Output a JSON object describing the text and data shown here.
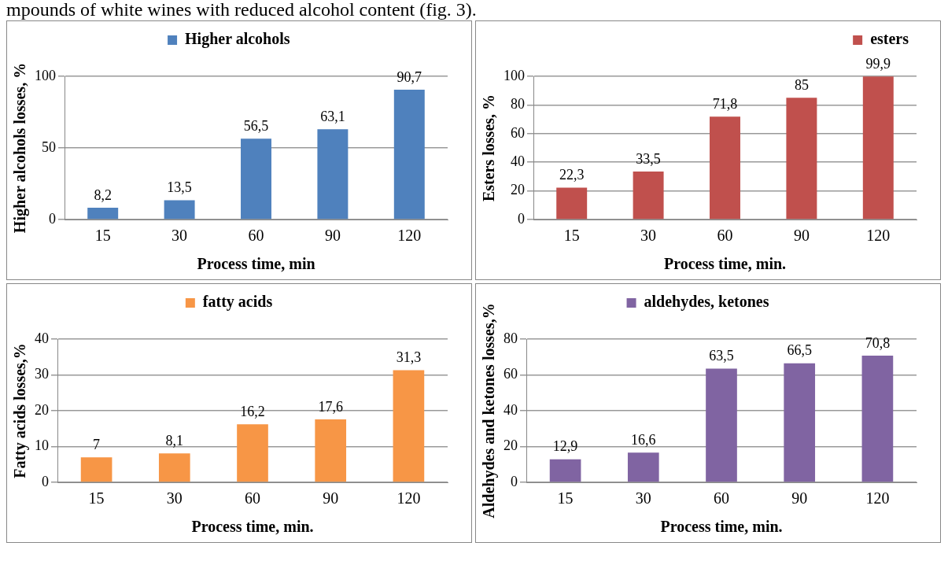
{
  "chart_data": [
    {
      "type": "bar",
      "annotations": [
        "mpounds of white wines with reduced alcohol content (fig. 3)."
      ],
      "categories": [
        "15",
        "30",
        "60",
        "90",
        "120"
      ],
      "xlabel": "Process time, min",
      "ylabel": "Higher alcohols losses, %",
      "ylim": [
        0,
        100
      ],
      "yticks": [
        0,
        50,
        100
      ],
      "grid": "y",
      "legend": "top",
      "series": [
        {
          "name": "Higher alcohols",
          "color": "#4f81bd",
          "values": [
            8.2,
            13.5,
            56.5,
            63.1,
            90.7
          ],
          "value_labels": [
            "8,2",
            "13,5",
            "56,5",
            "63,1",
            "90,7"
          ]
        }
      ]
    },
    {
      "type": "bar",
      "categories": [
        "15",
        "30",
        "60",
        "90",
        "120"
      ],
      "xlabel": "Process time, min.",
      "ylabel": "Esters losses, %",
      "ylim": [
        0,
        100
      ],
      "yticks": [
        0,
        20,
        40,
        60,
        80,
        100
      ],
      "grid": "y",
      "legend": "top right",
      "series": [
        {
          "name": "esters",
          "color": "#c0504d",
          "values": [
            22.3,
            33.5,
            71.8,
            85,
            99.9
          ],
          "value_labels": [
            "22,3",
            "33,5",
            "71,8",
            "85",
            "99,9"
          ]
        }
      ]
    },
    {
      "type": "bar",
      "categories": [
        "15",
        "30",
        "60",
        "90",
        "120"
      ],
      "xlabel": "Process time, min.",
      "ylabel": "Fatty acids losses,%",
      "ylim": [
        0,
        40
      ],
      "yticks": [
        0,
        10,
        20,
        30,
        40
      ],
      "grid": "y",
      "legend": "top",
      "series": [
        {
          "name": "fatty acids",
          "color": "#f79646",
          "values": [
            7,
            8.1,
            16.2,
            17.6,
            31.3
          ],
          "value_labels": [
            "7",
            "8,1",
            "16,2",
            "17,6",
            "31,3"
          ]
        }
      ]
    },
    {
      "type": "bar",
      "categories": [
        "15",
        "30",
        "60",
        "90",
        "120"
      ],
      "xlabel": "Process time, min.",
      "ylabel": "Aldehydes and ketones losses,%",
      "ylim": [
        0,
        80
      ],
      "yticks": [
        0,
        20,
        40,
        60,
        80
      ],
      "grid": "y",
      "legend": "top",
      "series": [
        {
          "name": "aldehydes, ketones",
          "color": "#8064a2",
          "values": [
            12.9,
            16.6,
            63.5,
            66.5,
            70.8
          ],
          "value_labels": [
            "12,9",
            "16,6",
            "63,5",
            "66,5",
            "70,8"
          ]
        }
      ]
    }
  ]
}
